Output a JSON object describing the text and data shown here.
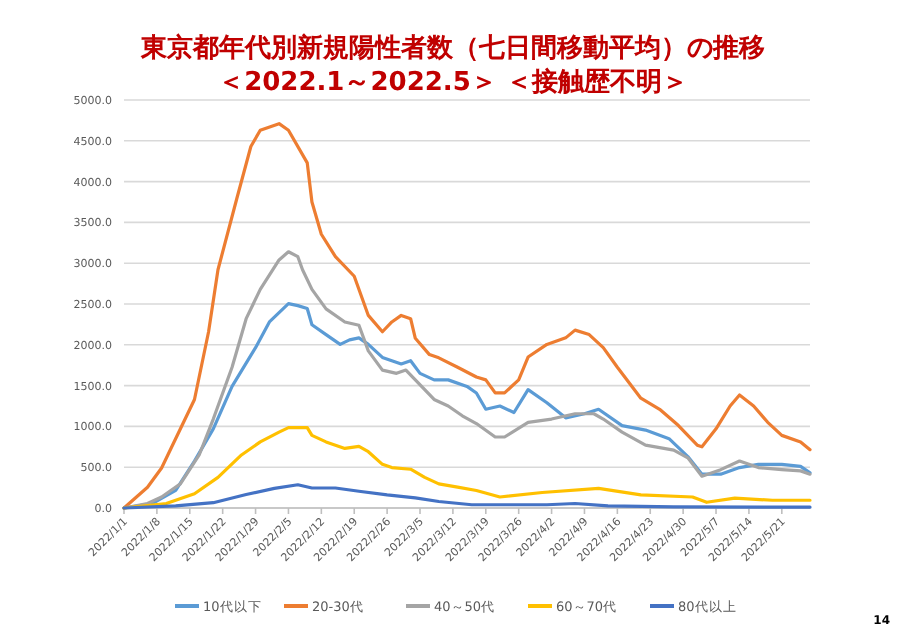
{
  "chart_data": {
    "type": "line",
    "title": "東京都年代別新規陽性者数（七日間移動平均）の推移",
    "subtitle": "＜2022.1～2022.5＞ ＜接触歴不明＞",
    "xlim": [
      "2022-01-01",
      "2022-05-27"
    ],
    "xticks": [
      {
        "value": "2022-01-01",
        "label": "2022/1/1"
      },
      {
        "value": "2022-01-08",
        "label": "2022/1/8"
      },
      {
        "value": "2022-01-15",
        "label": "2022/1/15"
      },
      {
        "value": "2022-01-22",
        "label": "2022/1/22"
      },
      {
        "value": "2022-01-29",
        "label": "2022/1/29"
      },
      {
        "value": "2022-02-05",
        "label": "2022/2/5"
      },
      {
        "value": "2022-02-12",
        "label": "2022/2/12"
      },
      {
        "value": "2022-02-19",
        "label": "2022/2/19"
      },
      {
        "value": "2022-02-26",
        "label": "2022/2/26"
      },
      {
        "value": "2022-03-05",
        "label": "2022/3/5"
      },
      {
        "value": "2022-03-12",
        "label": "2022/3/12"
      },
      {
        "value": "2022-03-19",
        "label": "2022/3/19"
      },
      {
        "value": "2022-03-26",
        "label": "2022/3/26"
      },
      {
        "value": "2022-04-02",
        "label": "2022/4/2"
      },
      {
        "value": "2022-04-09",
        "label": "2022/4/9"
      },
      {
        "value": "2022-04-16",
        "label": "2022/4/16"
      },
      {
        "value": "2022-04-23",
        "label": "2022/4/23"
      },
      {
        "value": "2022-04-30",
        "label": "2022/4/30"
      },
      {
        "value": "2022-05-07",
        "label": "2022/5/7"
      },
      {
        "value": "2022-05-14",
        "label": "2022/5/14"
      },
      {
        "value": "2022-05-21",
        "label": "2022/5/21"
      }
    ],
    "ylim": [
      0,
      5000
    ],
    "yticks": [
      {
        "value": 0,
        "label": "0.0"
      },
      {
        "value": 500,
        "label": "500.0"
      },
      {
        "value": 1000,
        "label": "1000.0"
      },
      {
        "value": 1500,
        "label": "1500.0"
      },
      {
        "value": 2000,
        "label": "2000.0"
      },
      {
        "value": 2500,
        "label": "2500.0"
      },
      {
        "value": 3000,
        "label": "3000.0"
      },
      {
        "value": 3500,
        "label": "3500.0"
      },
      {
        "value": 4000,
        "label": "4000.0"
      },
      {
        "value": 4500,
        "label": "4500.0"
      },
      {
        "value": 5000,
        "label": "5000.0"
      }
    ],
    "grid": "y",
    "legend": "bottom",
    "marker": "none",
    "annotations": [
      "14"
    ],
    "series": [
      {
        "name": "10代以下",
        "color": "#5b9bd5",
        "x": [
          "2022-01-01",
          "2022-01-07",
          "2022-01-12",
          "2022-01-16",
          "2022-01-20",
          "2022-01-24",
          "2022-01-29",
          "2022-02-01",
          "2022-02-05",
          "2022-02-07",
          "2022-02-09",
          "2022-02-10",
          "2022-02-13",
          "2022-02-16",
          "2022-02-18",
          "2022-02-20",
          "2022-02-22",
          "2022-02-25",
          "2022-02-27",
          "2022-03-01",
          "2022-03-03",
          "2022-03-05",
          "2022-03-08",
          "2022-03-11",
          "2022-03-15",
          "2022-03-17",
          "2022-03-19",
          "2022-03-22",
          "2022-03-25",
          "2022-03-28",
          "2022-04-01",
          "2022-04-05",
          "2022-04-09",
          "2022-04-12",
          "2022-04-17",
          "2022-04-22",
          "2022-04-27",
          "2022-05-01",
          "2022-05-04",
          "2022-05-08",
          "2022-05-12",
          "2022-05-16",
          "2022-05-21",
          "2022-05-25",
          "2022-05-27"
        ],
        "values": [
          0,
          55,
          215,
          575,
          970,
          1490,
          1965,
          2285,
          2505,
          2480,
          2445,
          2245,
          2125,
          2005,
          2060,
          2085,
          2005,
          1845,
          1805,
          1765,
          1805,
          1650,
          1570,
          1570,
          1490,
          1410,
          1210,
          1250,
          1170,
          1450,
          1290,
          1105,
          1155,
          1210,
          1010,
          955,
          850,
          630,
          415,
          415,
          495,
          535,
          535,
          510,
          430
        ]
      },
      {
        "name": "20-30代",
        "color": "#ed7d31",
        "x": [
          "2022-01-01",
          "2022-01-06",
          "2022-01-09",
          "2022-01-16",
          "2022-01-19",
          "2022-01-21",
          "2022-01-25",
          "2022-01-28",
          "2022-01-30",
          "2022-02-03",
          "2022-02-05",
          "2022-02-09",
          "2022-02-10",
          "2022-02-12",
          "2022-02-15",
          "2022-02-19",
          "2022-02-22",
          "2022-02-25",
          "2022-02-27",
          "2022-03-01",
          "2022-03-03",
          "2022-03-04",
          "2022-03-07",
          "2022-03-09",
          "2022-03-13",
          "2022-03-17",
          "2022-03-19",
          "2022-03-21",
          "2022-03-23",
          "2022-03-26",
          "2022-03-28",
          "2022-04-01",
          "2022-04-05",
          "2022-04-07",
          "2022-04-10",
          "2022-04-13",
          "2022-04-16",
          "2022-04-21",
          "2022-04-25",
          "2022-04-29",
          "2022-05-03",
          "2022-05-04",
          "2022-05-07",
          "2022-05-10",
          "2022-05-12",
          "2022-05-15",
          "2022-05-18",
          "2022-05-21",
          "2022-05-25",
          "2022-05-27"
        ],
        "values": [
          0,
          255,
          490,
          1330,
          2160,
          2920,
          3790,
          4430,
          4630,
          4710,
          4630,
          4230,
          3750,
          3355,
          3080,
          2840,
          2360,
          2160,
          2280,
          2360,
          2320,
          2080,
          1880,
          1840,
          1725,
          1605,
          1570,
          1410,
          1410,
          1570,
          1850,
          2005,
          2085,
          2180,
          2125,
          1965,
          1725,
          1345,
          1210,
          1010,
          770,
          750,
          970,
          1250,
          1385,
          1250,
          1050,
          890,
          810,
          715
        ]
      },
      {
        "name": "40～50代",
        "color": "#a5a5a5",
        "x": [
          "2022-01-01",
          "2022-01-06",
          "2022-01-09",
          "2022-01-13",
          "2022-01-17",
          "2022-01-20",
          "2022-01-24",
          "2022-01-27",
          "2022-01-30",
          "2022-02-03",
          "2022-02-05",
          "2022-02-07",
          "2022-02-08",
          "2022-02-10",
          "2022-02-13",
          "2022-02-17",
          "2022-02-20",
          "2022-02-22",
          "2022-02-25",
          "2022-02-28",
          "2022-03-02",
          "2022-03-04",
          "2022-03-08",
          "2022-03-11",
          "2022-03-14",
          "2022-03-17",
          "2022-03-21",
          "2022-03-23",
          "2022-03-28",
          "2022-04-02",
          "2022-04-07",
          "2022-04-11",
          "2022-04-13",
          "2022-04-17",
          "2022-04-22",
          "2022-04-28",
          "2022-05-01",
          "2022-05-04",
          "2022-05-08",
          "2022-05-12",
          "2022-05-16",
          "2022-05-21",
          "2022-05-25",
          "2022-05-27"
        ],
        "values": [
          0,
          55,
          135,
          295,
          650,
          1090,
          1725,
          2320,
          2680,
          3040,
          3140,
          3080,
          2920,
          2680,
          2440,
          2280,
          2240,
          1925,
          1690,
          1650,
          1690,
          1570,
          1330,
          1250,
          1130,
          1035,
          870,
          870,
          1050,
          1090,
          1155,
          1155,
          1090,
          930,
          770,
          710,
          615,
          390,
          470,
          575,
          495,
          470,
          455,
          415
        ]
      },
      {
        "name": "60～70代",
        "color": "#ffc000",
        "x": [
          "2022-01-01",
          "2022-01-10",
          "2022-01-16",
          "2022-01-21",
          "2022-01-26",
          "2022-01-30",
          "2022-02-03",
          "2022-02-05",
          "2022-02-09",
          "2022-02-10",
          "2022-02-13",
          "2022-02-17",
          "2022-02-20",
          "2022-02-22",
          "2022-02-25",
          "2022-02-27",
          "2022-03-03",
          "2022-03-06",
          "2022-03-09",
          "2022-03-13",
          "2022-03-17",
          "2022-03-22",
          "2022-03-31",
          "2022-04-12",
          "2022-04-21",
          "2022-05-02",
          "2022-05-05",
          "2022-05-11",
          "2022-05-19",
          "2022-05-27"
        ],
        "values": [
          0,
          55,
          175,
          375,
          650,
          810,
          930,
          985,
          985,
          890,
          810,
          730,
          755,
          690,
          535,
          495,
          475,
          375,
          295,
          255,
          215,
          135,
          190,
          240,
          160,
          135,
          70,
          120,
          95,
          95
        ]
      },
      {
        "name": "80代以上",
        "color": "#4472c4",
        "x": [
          "2022-01-01",
          "2022-01-12",
          "2022-01-20",
          "2022-01-27",
          "2022-02-02",
          "2022-02-07",
          "2022-02-10",
          "2022-02-15",
          "2022-02-20",
          "2022-02-26",
          "2022-03-04",
          "2022-03-09",
          "2022-03-16",
          "2022-03-23",
          "2022-04-01",
          "2022-04-07",
          "2022-04-14",
          "2022-04-28",
          "2022-05-27"
        ],
        "values": [
          0,
          25,
          65,
          165,
          240,
          285,
          245,
          245,
          205,
          160,
          125,
          80,
          40,
          40,
          40,
          55,
          25,
          15,
          10
        ]
      }
    ]
  }
}
